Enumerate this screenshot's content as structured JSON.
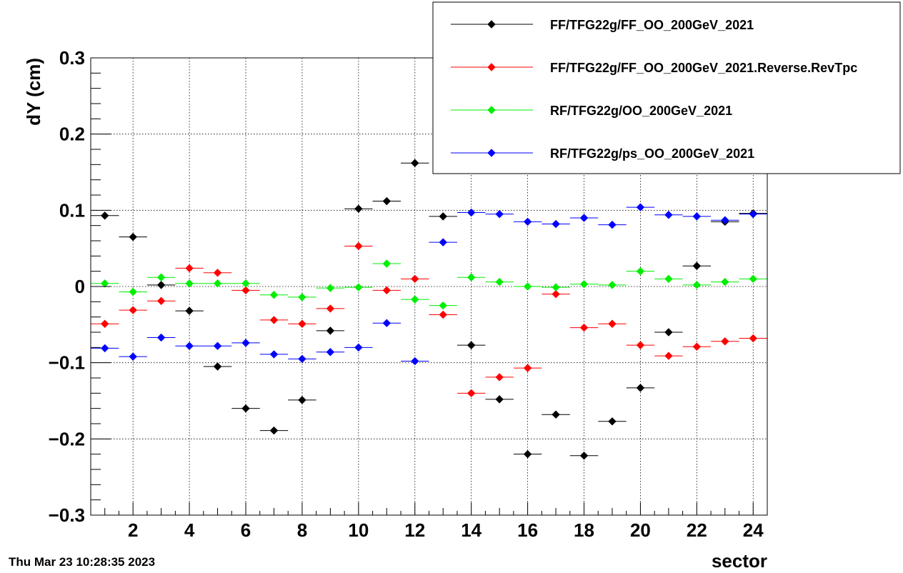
{
  "timestamp": "Thu Mar 23 10:28:35 2023",
  "chart_data": {
    "type": "scatter",
    "title": "",
    "xlabel": "sector",
    "ylabel": "dY (cm)",
    "xlim": [
      0.5,
      24.5
    ],
    "ylim": [
      -0.3,
      0.3
    ],
    "x_ticks": [
      2,
      4,
      6,
      8,
      10,
      12,
      14,
      16,
      18,
      20,
      22,
      24
    ],
    "y_ticks": [
      -0.3,
      -0.2,
      -0.1,
      0,
      0.1,
      0.2,
      0.3
    ],
    "y_tick_labels": [
      "−0.3",
      "−0.2",
      "−0.1",
      "0",
      "0.1",
      "0.2",
      "0.3"
    ],
    "grid": true,
    "legend_position": "top-right",
    "x": [
      1,
      2,
      3,
      4,
      5,
      6,
      7,
      8,
      9,
      10,
      11,
      12,
      13,
      14,
      15,
      16,
      17,
      18,
      19,
      20,
      21,
      22,
      23,
      24
    ],
    "series": [
      {
        "name": "FF/TFG22g/FF_OO_200GeV_2021",
        "color": "#000000",
        "values": [
          0.093,
          0.065,
          0.002,
          -0.032,
          -0.105,
          -0.16,
          -0.189,
          -0.149,
          -0.058,
          0.102,
          0.112,
          0.162,
          0.092,
          -0.077,
          -0.148,
          -0.22,
          -0.168,
          -0.222,
          -0.177,
          -0.133,
          -0.06,
          0.027,
          0.085,
          0.096
        ]
      },
      {
        "name": "FF/TFG22g/FF_OO_200GeV_2021.Reverse.RevTpc",
        "color": "#ff0000",
        "values": [
          -0.049,
          -0.031,
          -0.019,
          0.024,
          0.018,
          -0.005,
          -0.044,
          -0.049,
          -0.029,
          0.053,
          -0.005,
          0.01,
          -0.037,
          -0.14,
          -0.119,
          -0.107,
          -0.01,
          -0.054,
          -0.049,
          -0.077,
          -0.091,
          -0.079,
          -0.072,
          -0.068
        ]
      },
      {
        "name": "RF/TFG22g/OO_200GeV_2021",
        "color": "#00ee00",
        "values": [
          0.004,
          -0.007,
          0.012,
          0.004,
          0.004,
          0.004,
          -0.011,
          -0.014,
          -0.002,
          -0.001,
          0.03,
          -0.017,
          -0.025,
          0.012,
          0.006,
          0.0,
          -0.001,
          0.003,
          0.002,
          0.02,
          0.01,
          0.002,
          0.006,
          0.01
        ]
      },
      {
        "name": "RF/TFG22g/ps_OO_200GeV_2021",
        "color": "#0000ff",
        "values": [
          -0.081,
          -0.092,
          -0.067,
          -0.078,
          -0.078,
          -0.074,
          -0.089,
          -0.095,
          -0.086,
          -0.08,
          -0.048,
          -0.098,
          0.058,
          0.097,
          0.095,
          0.085,
          0.082,
          0.09,
          0.081,
          0.104,
          0.094,
          0.092,
          0.087,
          0.095
        ]
      }
    ]
  }
}
